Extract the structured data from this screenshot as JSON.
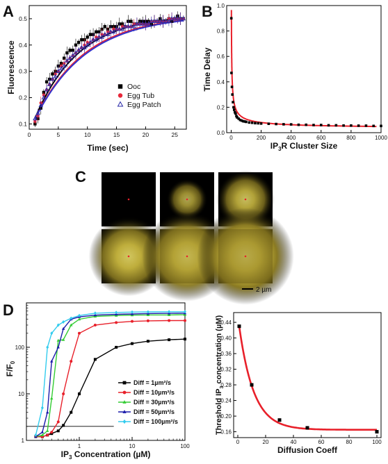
{
  "panels": {
    "A": "A",
    "B": "B",
    "C": "C",
    "D": "D"
  },
  "chart_data": [
    {
      "id": "A",
      "type": "scatter",
      "xlabel": "Time (sec)",
      "ylabel": "Fluorescence",
      "xlim": [
        0,
        27
      ],
      "ylim": [
        0.08,
        0.55
      ],
      "xticks": [
        "0",
        "5",
        "10",
        "15",
        "20",
        "25"
      ],
      "yticks": [
        "0.1",
        "0.2",
        "0.3",
        "0.4",
        "0.5"
      ],
      "legend_position": "bottom-right",
      "fit": {
        "y0": 0.1,
        "amp": 0.415,
        "tau": 8.0
      },
      "series": [
        {
          "name": "Ooc",
          "marker": "square",
          "color": "#000000",
          "fit_color": "#000000",
          "x": [
            1,
            1.5,
            2,
            2.5,
            3,
            3.5,
            4,
            4.5,
            5,
            5.5,
            6,
            6.5,
            7,
            7.5,
            8,
            8.5,
            9,
            9.5,
            10,
            10.5,
            11,
            11.5,
            12,
            12.5,
            13,
            13.5,
            14,
            14.5,
            15,
            15.5,
            16,
            16.5,
            17,
            17.5,
            18,
            18.5,
            19,
            19.5,
            20,
            20.5,
            21,
            21.5,
            22,
            22.5,
            23,
            23.5,
            24,
            24.5,
            25,
            25.5,
            26,
            26.5
          ],
          "y": [
            0.1,
            0.12,
            0.16,
            0.22,
            0.26,
            0.27,
            0.29,
            0.3,
            0.32,
            0.33,
            0.35,
            0.37,
            0.38,
            0.38,
            0.4,
            0.41,
            0.42,
            0.42,
            0.43,
            0.44,
            0.44,
            0.45,
            0.45,
            0.46,
            0.47,
            0.46,
            0.47,
            0.47,
            0.47,
            0.48,
            0.48,
            0.47,
            0.49,
            0.49,
            0.48,
            0.48,
            0.49,
            0.49,
            0.49,
            0.49,
            0.48,
            0.49,
            0.49,
            0.5,
            0.49,
            0.49,
            0.5,
            0.49,
            0.5,
            0.51,
            0.5,
            0.5
          ]
        },
        {
          "name": "Egg Tub",
          "marker": "circle",
          "color": "#e8283a",
          "fit_color": "#e8283a",
          "x": [
            1,
            1.5,
            2,
            2.5,
            3,
            3.5,
            4,
            4.5,
            5,
            5.5,
            6,
            6.5,
            7,
            7.5,
            8,
            8.5,
            9,
            9.5,
            10,
            10.5,
            11,
            11.5,
            12,
            12.5,
            13,
            13.5,
            14,
            14.5,
            15,
            15.5,
            16,
            16.5,
            17,
            17.5,
            18,
            18.5,
            19,
            19.5,
            20,
            20.5,
            21,
            21.5,
            22,
            22.5,
            23,
            23.5,
            24,
            24.5,
            25,
            25.5,
            26,
            26.5
          ],
          "y": [
            0.11,
            0.13,
            0.18,
            0.21,
            0.23,
            0.25,
            0.27,
            0.29,
            0.3,
            0.32,
            0.33,
            0.34,
            0.35,
            0.36,
            0.37,
            0.38,
            0.39,
            0.4,
            0.41,
            0.41,
            0.42,
            0.43,
            0.43,
            0.44,
            0.44,
            0.45,
            0.45,
            0.46,
            0.46,
            0.46,
            0.47,
            0.47,
            0.47,
            0.47,
            0.48,
            0.48,
            0.48,
            0.48,
            0.48,
            0.48,
            0.49,
            0.49,
            0.49,
            0.49,
            0.49,
            0.49,
            0.5,
            0.5,
            0.5,
            0.5,
            0.5,
            0.5
          ]
        },
        {
          "name": "Egg Patch",
          "marker": "triangle",
          "color": "#2a2aa8",
          "fit_color": "#3333cc",
          "x": [
            1,
            1.5,
            2,
            2.5,
            3,
            3.5,
            4,
            4.5,
            5,
            5.5,
            6,
            6.5,
            7,
            7.5,
            8,
            8.5,
            9,
            9.5,
            10,
            10.5,
            11,
            11.5,
            12,
            12.5,
            13,
            13.5,
            14,
            14.5,
            15,
            15.5,
            16,
            16.5,
            17,
            17.5,
            18,
            18.5,
            19,
            19.5,
            20,
            20.5,
            21,
            21.5,
            22,
            22.5,
            23,
            23.5,
            24,
            24.5,
            25,
            25.5,
            26,
            26.5
          ],
          "y": [
            0.12,
            0.14,
            0.17,
            0.2,
            0.23,
            0.25,
            0.27,
            0.28,
            0.3,
            0.31,
            0.32,
            0.34,
            0.35,
            0.36,
            0.37,
            0.38,
            0.39,
            0.39,
            0.4,
            0.41,
            0.42,
            0.42,
            0.43,
            0.43,
            0.44,
            0.44,
            0.45,
            0.45,
            0.46,
            0.46,
            0.46,
            0.47,
            0.47,
            0.47,
            0.47,
            0.48,
            0.48,
            0.48,
            0.48,
            0.48,
            0.49,
            0.49,
            0.49,
            0.49,
            0.49,
            0.49,
            0.49,
            0.5,
            0.5,
            0.5,
            0.5,
            0.5
          ]
        }
      ]
    },
    {
      "id": "B",
      "type": "scatter",
      "xlabel": "IP3R Cluster Size",
      "ylabel": "Time Delay",
      "xlim": [
        -30,
        1000
      ],
      "ylim": [
        0,
        1.0
      ],
      "xticks": [
        "0",
        "200",
        "400",
        "600",
        "800",
        "1000"
      ],
      "yticks": [
        "0.0",
        "0.2",
        "0.4",
        "0.6",
        "0.8",
        "1.0"
      ],
      "fit": {
        "a": 3.4,
        "b": -0.59,
        "c": 0.028
      },
      "series": [
        {
          "name": "",
          "marker": "square",
          "color": "#000000",
          "fit_color": "#e8202a",
          "x": [
            1,
            2,
            5,
            8,
            12,
            16,
            20,
            25,
            30,
            35,
            40,
            50,
            60,
            70,
            80,
            90,
            100,
            120,
            140,
            160,
            180,
            200,
            250,
            300,
            350,
            400,
            450,
            500,
            550,
            600,
            650,
            700,
            750,
            800,
            850,
            900,
            950,
            1000
          ],
          "y": [
            0.9,
            0.47,
            0.36,
            0.3,
            0.24,
            0.2,
            0.18,
            0.16,
            0.15,
            0.13,
            0.12,
            0.11,
            0.1,
            0.095,
            0.09,
            0.088,
            0.085,
            0.08,
            0.078,
            0.075,
            0.074,
            0.072,
            0.07,
            0.068,
            0.066,
            0.065,
            0.062,
            0.062,
            0.06,
            0.06,
            0.058,
            0.058,
            0.056,
            0.056,
            0.055,
            0.055,
            0.053,
            0.053
          ]
        }
      ]
    },
    {
      "id": "D1",
      "type": "line",
      "xlabel": "IP3 Concentration (µM)",
      "ylabel": "F/F0",
      "log_x": true,
      "log_y": true,
      "xlim": [
        0.1,
        100
      ],
      "ylim": [
        1,
        900
      ],
      "xticks": [
        "1",
        "10",
        "100"
      ],
      "yticks": [
        "1",
        "10",
        "100"
      ],
      "x": [
        0.15,
        0.2,
        0.25,
        0.3,
        0.4,
        0.5,
        0.7,
        1,
        2,
        5,
        10,
        20,
        50,
        100
      ],
      "threshold_line": {
        "x": [
          0.1,
          4.5
        ],
        "y": 2
      },
      "series": [
        {
          "name": "Diff = 1µm²/s",
          "color": "#000000",
          "marker": "square",
          "values": [
            1.2,
            1.2,
            1.3,
            1.4,
            1.6,
            2.1,
            4,
            10,
            55,
            100,
            120,
            135,
            145,
            150
          ]
        },
        {
          "name": "Diff = 10µm²/s",
          "color": "#e8202a",
          "marker": "circle",
          "values": [
            1.2,
            1.2,
            1.3,
            1.5,
            2.5,
            10,
            50,
            200,
            300,
            340,
            360,
            370,
            375,
            375
          ]
        },
        {
          "name": "Diff = 30µm²/s",
          "color": "#33cc33",
          "marker": "triangle",
          "values": [
            1.2,
            1.3,
            1.6,
            8,
            140,
            145,
            300,
            400,
            460,
            480,
            490,
            495,
            495,
            500
          ]
        },
        {
          "name": "Diff = 50µm²/s",
          "color": "#1a1aaa",
          "marker": "triangle",
          "values": [
            1.2,
            1.5,
            4,
            50,
            100,
            250,
            400,
            450,
            490,
            510,
            520,
            530,
            535,
            540
          ]
        },
        {
          "name": "Diff = 100µm²/s",
          "color": "#33ccee",
          "marker": "diamond",
          "values": [
            1.3,
            5,
            100,
            200,
            300,
            350,
            420,
            480,
            540,
            560,
            570,
            575,
            580,
            580
          ]
        }
      ]
    },
    {
      "id": "D2",
      "type": "scatter",
      "xlabel": "Diffusion Coeff",
      "ylabel": "Threshold IP3 concentration (µM)",
      "xlim": [
        -3,
        103
      ],
      "ylim": [
        0.145,
        0.465
      ],
      "xticks": [
        "0",
        "20",
        "40",
        "60",
        "80",
        "100"
      ],
      "yticks": [
        "0.16",
        "0.20",
        "0.24",
        "0.28",
        "0.32",
        "0.36",
        "0.40",
        "0.44"
      ],
      "fit": {
        "y0": 0.165,
        "amp": 0.265,
        "tau": 10.5,
        "x0": 1
      },
      "series": [
        {
          "name": "",
          "marker": "square",
          "color": "#000000",
          "fit_color": "#e8202a",
          "x": [
            1,
            10,
            30,
            50,
            100
          ],
          "y": [
            0.43,
            0.28,
            0.19,
            0.17,
            0.16
          ]
        }
      ]
    }
  ],
  "panel_c": {
    "scale_bar_label": "2 µm",
    "glow_levels": [
      0.0,
      0.25,
      0.45,
      0.7,
      0.82,
      0.9
    ]
  },
  "colors": {
    "red": "#e8202a",
    "yellow": "#ffe94a"
  }
}
